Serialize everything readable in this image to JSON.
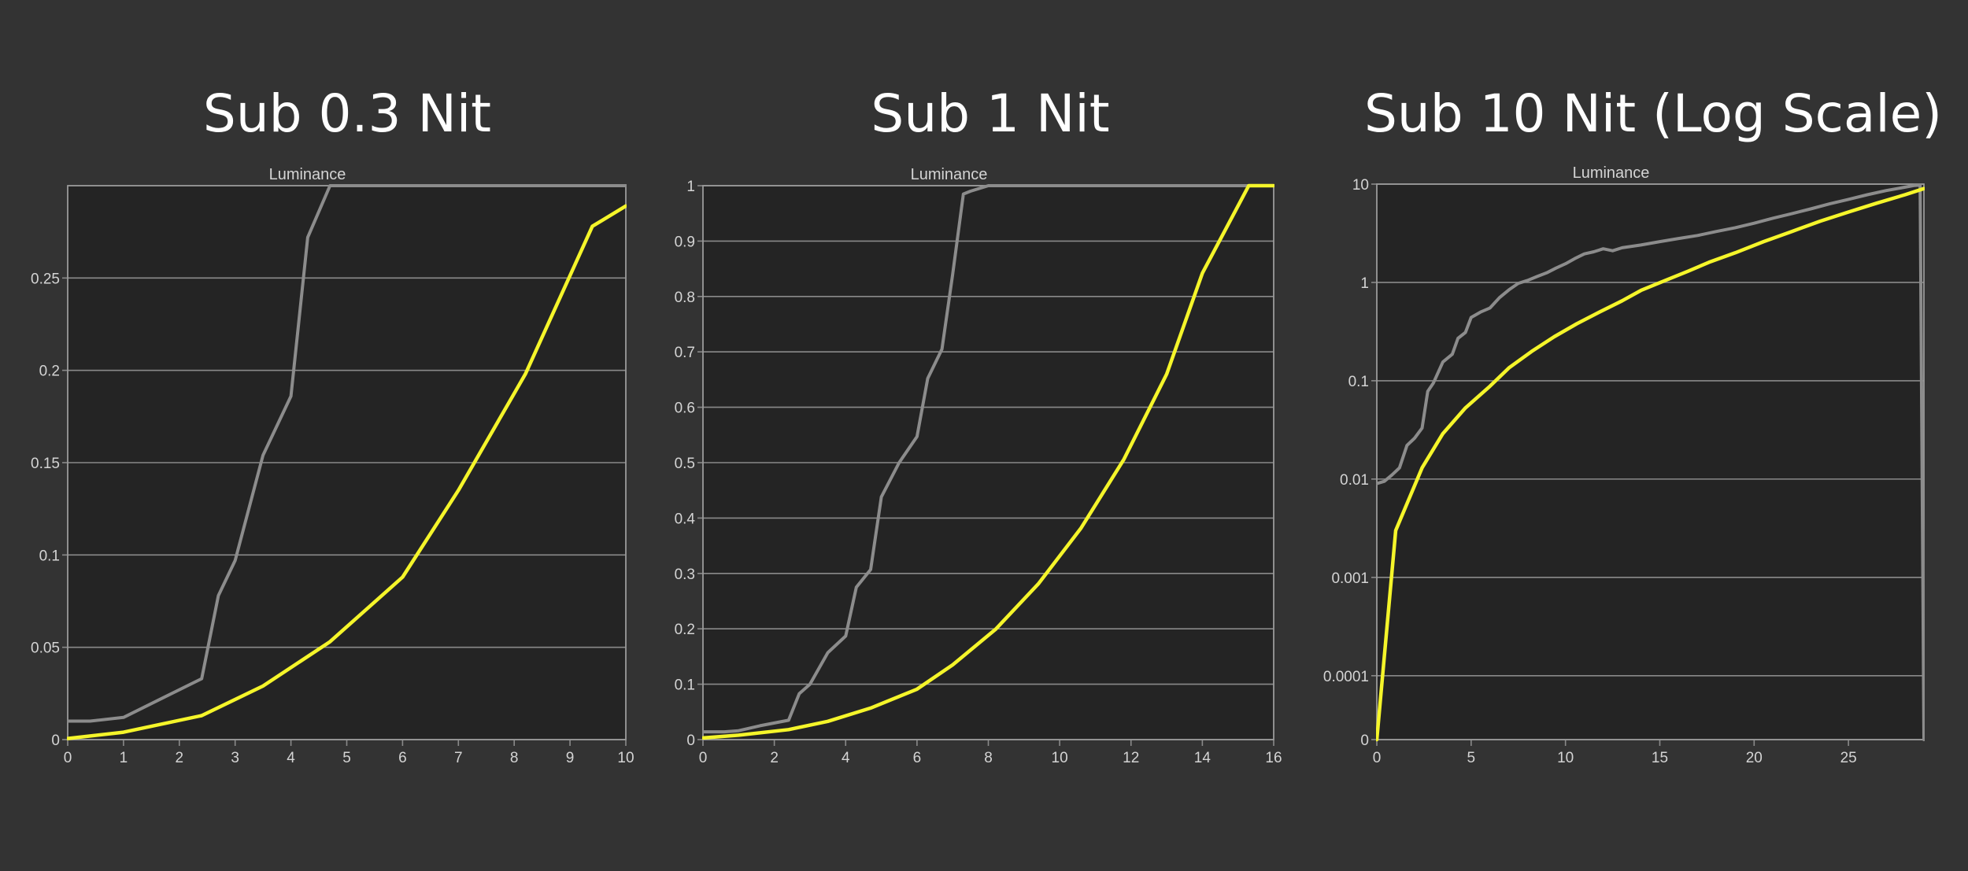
{
  "colors": {
    "background": "#333333",
    "plot_background": "#242424",
    "grid": "#8a8a8a",
    "gray_series": "#8c8c8c",
    "yellow_series": "#f5f52a",
    "text": "#d4d4d4",
    "title": "#ffffff"
  },
  "chart_data": [
    {
      "type": "line",
      "title": "Sub 0.3 Nit",
      "subtitle": "Luminance",
      "xlabel": "",
      "ylabel": "",
      "xlim": [
        0,
        10
      ],
      "ylim": [
        0,
        0.3
      ],
      "y_scale": "linear",
      "grid": "horizontal",
      "x_ticks": [
        0,
        1,
        2,
        3,
        4,
        5,
        6,
        7,
        8,
        9,
        10
      ],
      "x_tick_labels": [
        "0",
        "1",
        "2",
        "3",
        "4",
        "5",
        "6",
        "7",
        "8",
        "9",
        "10"
      ],
      "y_ticks": [
        0,
        0.05,
        0.1,
        0.15,
        0.2,
        0.25
      ],
      "y_tick_labels": [
        "0",
        "0.05",
        "0.1",
        "0.15",
        "0.2",
        "0.25"
      ],
      "series": [
        {
          "color": "#8c8c8c",
          "x": [
            0,
            0.4,
            1,
            1.6,
            2.4,
            2.7,
            3,
            3.5,
            4,
            4.3,
            4.7,
            10
          ],
          "y": [
            0.01,
            0.01,
            0.012,
            0.021,
            0.033,
            0.078,
            0.097,
            0.154,
            0.186,
            0.272,
            0.3,
            0.3
          ]
        },
        {
          "color": "#f5f52a",
          "x": [
            0,
            1,
            2.4,
            3.5,
            4.7,
            6,
            7,
            8.2,
            9.4,
            10
          ],
          "y": [
            0.0006,
            0.004,
            0.013,
            0.029,
            0.053,
            0.088,
            0.135,
            0.198,
            0.278,
            0.289
          ]
        }
      ]
    },
    {
      "type": "line",
      "title": "Sub 1 Nit",
      "subtitle": "Luminance",
      "xlabel": "",
      "ylabel": "",
      "xlim": [
        0,
        16
      ],
      "ylim": [
        0,
        1
      ],
      "y_scale": "linear",
      "grid": "horizontal",
      "x_ticks": [
        0,
        2,
        4,
        6,
        8,
        10,
        12,
        14,
        16
      ],
      "x_tick_labels": [
        "0",
        "2",
        "4",
        "6",
        "8",
        "10",
        "12",
        "14",
        "16"
      ],
      "y_ticks": [
        0,
        0.1,
        0.2,
        0.3,
        0.4,
        0.5,
        0.6,
        0.7,
        0.8,
        0.9,
        1
      ],
      "y_tick_labels": [
        "0",
        "0.1",
        "0.2",
        "0.3",
        "0.4",
        "0.5",
        "0.6",
        "0.7",
        "0.8",
        "0.9",
        "1"
      ],
      "series": [
        {
          "color": "#8c8c8c",
          "x": [
            0,
            0.6,
            1,
            1.6,
            2.4,
            2.7,
            3,
            3.5,
            4,
            4.3,
            4.7,
            5,
            5.5,
            6,
            6.3,
            6.7,
            7,
            7.3,
            7.5,
            8,
            16
          ],
          "y": [
            0.014,
            0.014,
            0.016,
            0.025,
            0.035,
            0.083,
            0.1,
            0.157,
            0.187,
            0.275,
            0.307,
            0.438,
            0.5,
            0.547,
            0.652,
            0.705,
            0.84,
            0.985,
            0.99,
            1,
            1
          ]
        },
        {
          "color": "#f5f52a",
          "x": [
            0,
            1,
            2.4,
            3.5,
            4.7,
            6,
            7,
            8.2,
            9.4,
            10.6,
            11.8,
            13,
            14,
            15.3,
            16
          ],
          "y": [
            0.003,
            0.008,
            0.018,
            0.033,
            0.057,
            0.091,
            0.135,
            0.199,
            0.281,
            0.382,
            0.506,
            0.66,
            0.842,
            1,
            1
          ]
        }
      ]
    },
    {
      "type": "line",
      "title": "Sub 10 Nit (Log Scale)",
      "subtitle": "Luminance",
      "xlabel": "",
      "ylabel": "",
      "xlim": [
        0,
        29
      ],
      "ylim": [
        0,
        10
      ],
      "y_scale": "log (zero row at bottom)",
      "grid": "horizontal",
      "x_ticks": [
        0,
        5,
        10,
        15,
        20,
        25
      ],
      "x_tick_labels": [
        "0",
        "5",
        "10",
        "15",
        "20",
        "25"
      ],
      "y_ticks": [
        0,
        0.0001,
        0.001,
        0.01,
        0.1,
        1,
        10
      ],
      "y_tick_labels": [
        "0",
        "0.0001",
        "0.001",
        "0.01",
        "0.1",
        "1",
        "10"
      ],
      "series": [
        {
          "color": "#8c8c8c",
          "x": [
            0,
            0.4,
            0.8,
            1.2,
            1.6,
            2,
            2.4,
            2.7,
            3,
            3.5,
            4,
            4.3,
            4.7,
            5,
            5.5,
            6,
            6.5,
            7,
            7.5,
            8,
            8.5,
            9,
            9.5,
            10,
            10.5,
            11,
            11.5,
            12,
            12.5,
            13,
            14,
            15,
            16,
            17,
            18,
            19,
            20,
            21,
            22,
            23,
            24,
            25,
            26,
            27,
            28,
            28.5,
            28.8,
            29
          ],
          "y": [
            0.009,
            0.0095,
            0.011,
            0.013,
            0.022,
            0.026,
            0.033,
            0.078,
            0.095,
            0.155,
            0.186,
            0.27,
            0.31,
            0.44,
            0.5,
            0.55,
            0.7,
            0.84,
            0.98,
            1.05,
            1.15,
            1.25,
            1.4,
            1.55,
            1.75,
            1.95,
            2.05,
            2.2,
            2.1,
            2.25,
            2.4,
            2.6,
            2.8,
            3.0,
            3.3,
            3.6,
            4.0,
            4.5,
            5.0,
            5.6,
            6.3,
            7.0,
            7.8,
            8.6,
            9.3,
            9.7,
            9.8,
            0
          ]
        },
        {
          "color": "#f5f52a",
          "x": [
            0,
            1,
            2.4,
            3.5,
            4.7,
            6,
            7,
            8.2,
            9.4,
            10.6,
            11.8,
            13,
            14,
            15.3,
            16.5,
            17.6,
            19,
            20.5,
            22,
            23.5,
            25,
            26.5,
            28,
            29
          ],
          "y": [
            0,
            0.003,
            0.013,
            0.029,
            0.053,
            0.088,
            0.135,
            0.198,
            0.28,
            0.38,
            0.5,
            0.65,
            0.83,
            1.05,
            1.3,
            1.6,
            2.0,
            2.6,
            3.3,
            4.2,
            5.2,
            6.4,
            7.8,
            9.0
          ]
        }
      ]
    }
  ]
}
